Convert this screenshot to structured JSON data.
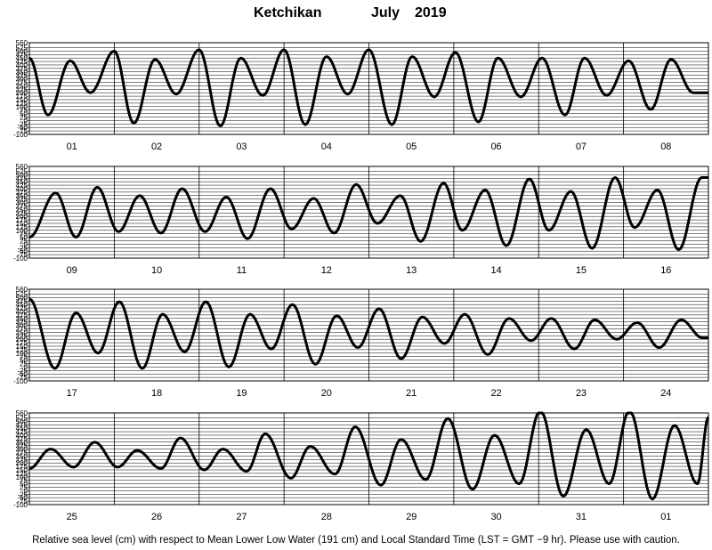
{
  "title": {
    "location": "Ketchikan",
    "month": "July",
    "year": "2019"
  },
  "caption": "Relative sea level (cm) with respect to Mean Lower Low Water (191 cm) and Local Standard Time (LST = GMT −9 hr). Please use with caution.",
  "chart_data": {
    "type": "line",
    "units": "cm",
    "ylim": [
      -100,
      560
    ],
    "y_ticks": [
      -100,
      -75,
      -50,
      -25,
      0,
      25,
      50,
      75,
      100,
      125,
      150,
      175,
      200,
      225,
      250,
      275,
      300,
      325,
      350,
      375,
      400,
      425,
      450,
      475,
      500,
      525,
      560
    ],
    "grid": true,
    "panels": [
      {
        "days": [
          "01",
          "02",
          "03",
          "04",
          "05",
          "06",
          "07",
          "08"
        ],
        "series": [
          {
            "x": [
              0,
              0.22,
              0.48,
              0.72,
              1.0,
              1.23,
              1.48,
              1.73,
              2.0,
              2.25,
              2.49,
              2.75,
              3.0,
              3.25,
              3.5,
              3.75,
              4.0,
              4.27,
              4.51,
              4.77,
              5.02,
              5.29,
              5.52,
              5.79,
              6.04,
              6.31,
              6.54,
              6.8,
              7.06,
              7.32,
              7.56,
              7.82,
              8.0
            ],
            "y": [
              450,
              40,
              430,
              200,
              500,
              -20,
              440,
              190,
              510,
              -40,
              450,
              180,
              510,
              -30,
              460,
              190,
              510,
              -30,
              460,
              170,
              490,
              -10,
              450,
              170,
              450,
              40,
              450,
              180,
              430,
              80,
              440,
              200,
              200
            ]
          }
        ]
      },
      {
        "days": [
          "09",
          "10",
          "11",
          "12",
          "13",
          "14",
          "15",
          "16"
        ],
        "series": [
          {
            "x": [
              0,
              0.31,
              0.55,
              0.8,
              1.05,
              1.3,
              1.55,
              1.8,
              2.07,
              2.32,
              2.57,
              2.84,
              3.09,
              3.35,
              3.59,
              3.85,
              4.1,
              4.37,
              4.61,
              4.88,
              5.1,
              5.37,
              5.62,
              5.89,
              6.12,
              6.38,
              6.63,
              6.9,
              7.13,
              7.4,
              7.65,
              7.92,
              8.0
            ],
            "y": [
              50,
              370,
              50,
              410,
              90,
              350,
              80,
              400,
              90,
              340,
              40,
              400,
              110,
              330,
              80,
              430,
              150,
              350,
              20,
              440,
              100,
              390,
              -10,
              470,
              100,
              380,
              -30,
              480,
              120,
              390,
              -40,
              480,
              480
            ]
          }
        ]
      },
      {
        "days": [
          "17",
          "18",
          "19",
          "20",
          "21",
          "22",
          "23",
          "24"
        ],
        "series": [
          {
            "x": [
              0,
              0.3,
              0.55,
              0.81,
              1.06,
              1.33,
              1.57,
              1.83,
              2.08,
              2.35,
              2.6,
              2.85,
              3.1,
              3.37,
              3.62,
              3.87,
              4.12,
              4.38,
              4.63,
              4.89,
              5.13,
              5.4,
              5.65,
              5.91,
              6.15,
              6.42,
              6.66,
              6.92,
              7.16,
              7.42,
              7.68,
              7.93,
              8.0
            ],
            "y": [
              490,
              -10,
              390,
              100,
              470,
              -10,
              380,
              110,
              470,
              0,
              380,
              130,
              450,
              20,
              370,
              140,
              420,
              60,
              360,
              170,
              380,
              90,
              350,
              190,
              350,
              130,
              340,
              200,
              320,
              140,
              340,
              210,
              210
            ]
          }
        ]
      },
      {
        "days": [
          "25",
          "26",
          "27",
          "28",
          "29",
          "30",
          "31",
          "01"
        ],
        "series": [
          {
            "x": [
              0,
              0.25,
              0.52,
              0.77,
              1.04,
              1.27,
              1.55,
              1.78,
              2.06,
              2.28,
              2.56,
              2.78,
              3.08,
              3.31,
              3.6,
              3.84,
              4.14,
              4.38,
              4.67,
              4.93,
              5.22,
              5.48,
              5.77,
              6.02,
              6.29,
              6.56,
              6.83,
              7.07,
              7.34,
              7.6,
              7.87,
              8.0
            ],
            "y": [
              160,
              300,
              170,
              350,
              170,
              290,
              160,
              380,
              150,
              300,
              140,
              410,
              90,
              320,
              120,
              460,
              40,
              370,
              80,
              520,
              10,
              400,
              50,
              580,
              -40,
              440,
              50,
              580,
              -60,
              470,
              50,
              530
            ]
          }
        ]
      }
    ]
  }
}
